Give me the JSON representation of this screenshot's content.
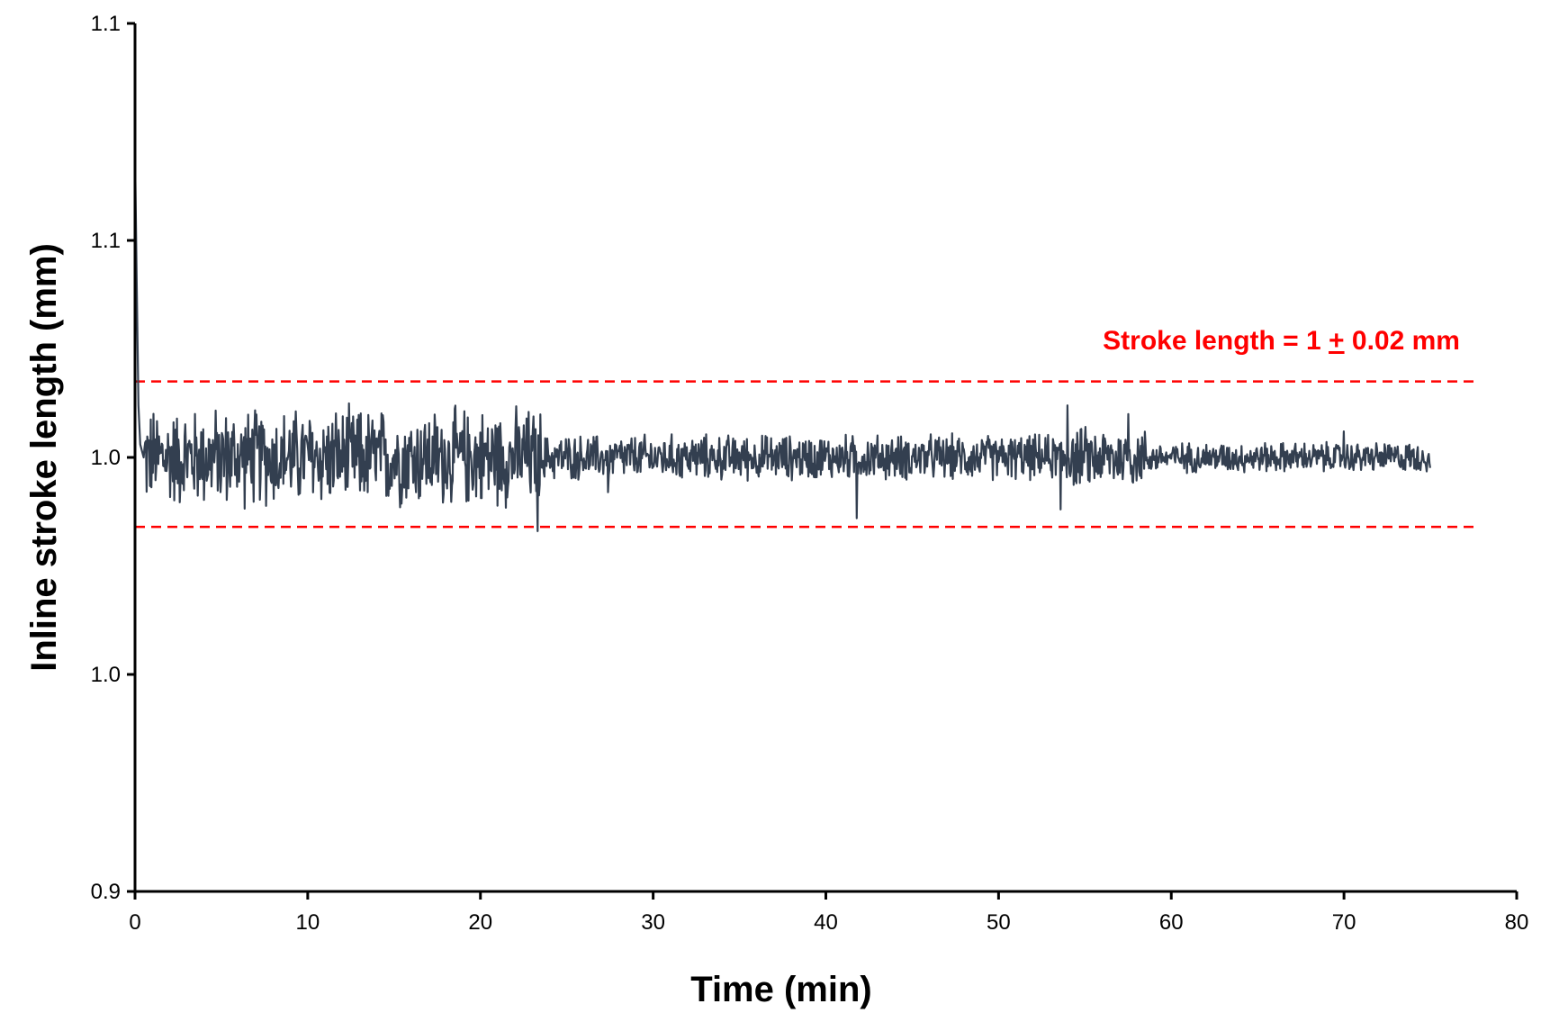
{
  "chart_data": {
    "type": "line",
    "xlabel": "Time (min)",
    "ylabel": "Inline stroke length (mm)",
    "xlim": [
      0,
      80
    ],
    "ylim": [
      0.9,
      1.1
    ],
    "x_ticks": [
      0,
      10,
      20,
      30,
      40,
      50,
      60,
      70,
      80
    ],
    "y_ticks": [
      {
        "value": 0.9,
        "label": "0.9"
      },
      {
        "value": 0.95,
        "label": "1.0"
      },
      {
        "value": 1.0,
        "label": "1.0"
      },
      {
        "value": 1.05,
        "label": "1.1"
      },
      {
        "value": 1.1,
        "label": "1.1"
      }
    ],
    "grid": false,
    "annotation": {
      "prefix": "Stroke length = 1 ",
      "symbol": "+",
      "suffix": " 0.02 mm",
      "color": "#ff0000"
    },
    "reference_lines": [
      {
        "y": 1.0175,
        "color": "#ff0000",
        "style": "dashed"
      },
      {
        "y": 0.984,
        "color": "#ff0000",
        "style": "dashed"
      }
    ],
    "series": [
      {
        "color": "#333f50",
        "x": [
          0,
          0.1,
          0.2,
          0.3,
          0.5,
          1,
          2,
          3,
          4,
          5,
          6,
          7,
          8,
          9,
          10,
          11,
          12,
          13,
          14,
          15,
          16,
          17,
          18,
          19,
          20,
          21,
          22,
          23,
          23.4,
          24,
          25,
          26,
          27,
          27.5,
          28,
          29,
          30,
          31,
          32,
          33,
          34,
          35,
          36,
          37,
          38,
          39,
          40,
          41,
          41.8,
          42,
          43,
          44,
          45,
          46,
          47,
          48,
          49,
          50,
          51,
          52,
          53,
          53.6,
          53.9,
          54.2,
          55,
          56,
          57,
          57.5,
          58,
          59,
          60,
          61,
          62,
          63,
          64,
          65,
          66,
          67,
          68,
          69,
          70,
          71,
          72,
          73,
          74,
          75
        ],
        "y": [
          1.07,
          1.04,
          1.012,
          1.003,
          1.0,
          1.0,
          1.0,
          1.0,
          1.0,
          1.0,
          1.0,
          1.0,
          1.0,
          1.0,
          1.0,
          1.0,
          1.0,
          1.0,
          1.0,
          1.0,
          1.0,
          1.0,
          1.0,
          1.0,
          1.0,
          1.0,
          1.0,
          1.0,
          1.0,
          1.0,
          1.0,
          1.0,
          1.0,
          1.0,
          1.0,
          1.0,
          1.0,
          1.0,
          1.0,
          1.0,
          1.0,
          1.0,
          1.0,
          1.0,
          1.0,
          1.0,
          1.0,
          1.0,
          1.0,
          1.0,
          1.0,
          1.0,
          1.0,
          1.0,
          1.0,
          1.0,
          1.0,
          1.0,
          1.0,
          1.0,
          1.0,
          1.0,
          1.0,
          1.0,
          1.0,
          1.0,
          1.0,
          1.0,
          1.0,
          1.0,
          1.0,
          1.0,
          1.0,
          1.0,
          1.0,
          1.0,
          1.0,
          1.0,
          1.0,
          1.0,
          1.0,
          1.0,
          1.0,
          1.0,
          1.0,
          1.0
        ],
        "noise_envelope": [
          {
            "from": 0.5,
            "to": 23.5,
            "amplitude": 0.013
          },
          {
            "from": 23.5,
            "to": 53.5,
            "amplitude": 0.006
          },
          {
            "from": 53.5,
            "to": 58.5,
            "amplitude": 0.008
          },
          {
            "from": 58.5,
            "to": 75,
            "amplitude": 0.004
          }
        ],
        "spikes": [
          {
            "x": 23.3,
            "y": 0.983
          },
          {
            "x": 41.8,
            "y": 0.986
          },
          {
            "x": 53.6,
            "y": 0.988
          },
          {
            "x": 54.0,
            "y": 1.012
          },
          {
            "x": 57.5,
            "y": 1.01
          },
          {
            "x": 27.4,
            "y": 0.992
          },
          {
            "x": 70.0,
            "y": 1.006
          }
        ]
      }
    ]
  }
}
